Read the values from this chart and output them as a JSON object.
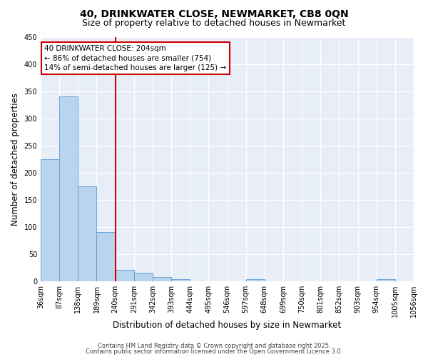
{
  "title_line1": "40, DRINKWATER CLOSE, NEWMARKET, CB8 0QN",
  "title_line2": "Size of property relative to detached houses in Newmarket",
  "xlabel": "Distribution of detached houses by size in Newmarket",
  "ylabel": "Number of detached properties",
  "bar_values": [
    225,
    340,
    175,
    90,
    21,
    15,
    7,
    4,
    0,
    0,
    0,
    4,
    0,
    0,
    0,
    0,
    0,
    0,
    3,
    0
  ],
  "categories": [
    "36sqm",
    "87sqm",
    "138sqm",
    "189sqm",
    "240sqm",
    "291sqm",
    "342sqm",
    "393sqm",
    "444sqm",
    "495sqm",
    "546sqm",
    "597sqm",
    "648sqm",
    "699sqm",
    "750sqm",
    "801sqm",
    "852sqm",
    "903sqm",
    "954sqm",
    "1005sqm",
    "1056sqm"
  ],
  "bar_color": "#b8d4ee",
  "bar_edge_color": "#5b9bd5",
  "red_line_after_bar": 3,
  "annotation_text": "40 DRINKWATER CLOSE: 204sqm\n← 86% of detached houses are smaller (754)\n14% of semi-detached houses are larger (125) →",
  "annotation_box_color": "#ffffff",
  "annotation_border_color": "#cc0000",
  "ylim": [
    0,
    450
  ],
  "yticks": [
    0,
    50,
    100,
    150,
    200,
    250,
    300,
    350,
    400,
    450
  ],
  "footer_line1": "Contains HM Land Registry data © Crown copyright and database right 2025.",
  "footer_line2": "Contains public sector information licensed under the Open Government Licence 3.0.",
  "background_color": "#e8eef8",
  "grid_color": "#ffffff",
  "title_fontsize": 10,
  "subtitle_fontsize": 9,
  "tick_fontsize": 7,
  "ylabel_fontsize": 8.5,
  "xlabel_fontsize": 8.5,
  "footer_fontsize": 6,
  "annotation_fontsize": 7.5
}
